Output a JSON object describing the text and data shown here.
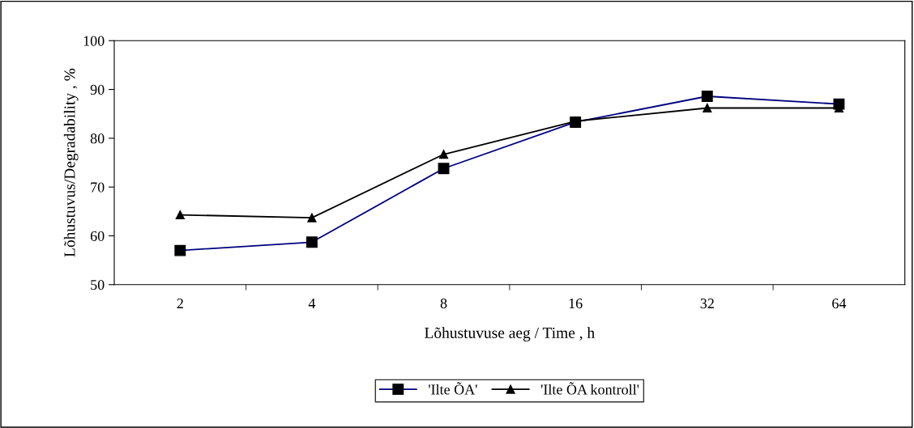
{
  "chart_data": {
    "type": "line",
    "xlabel": "Lõhustuvuse aeg / Time , h",
    "ylabel": "Lõhustuvus/Degradability , %",
    "categories": [
      "2",
      "4",
      "8",
      "16",
      "32",
      "64"
    ],
    "series": [
      {
        "name": "'Ilte ÕA'",
        "color": "#000080",
        "marker": "square",
        "values": [
          57.0,
          58.7,
          73.8,
          83.3,
          88.6,
          87.0
        ]
      },
      {
        "name": "'Ilte ÕA kontroll'",
        "color": "#000000",
        "marker": "triangle",
        "values": [
          64.3,
          63.7,
          76.7,
          83.5,
          86.2,
          86.2
        ]
      }
    ],
    "ylim": [
      50,
      100
    ],
    "yticks": [
      50,
      60,
      70,
      80,
      90,
      100
    ],
    "grid": false,
    "legend": "bottom",
    "line_style": "solid"
  }
}
